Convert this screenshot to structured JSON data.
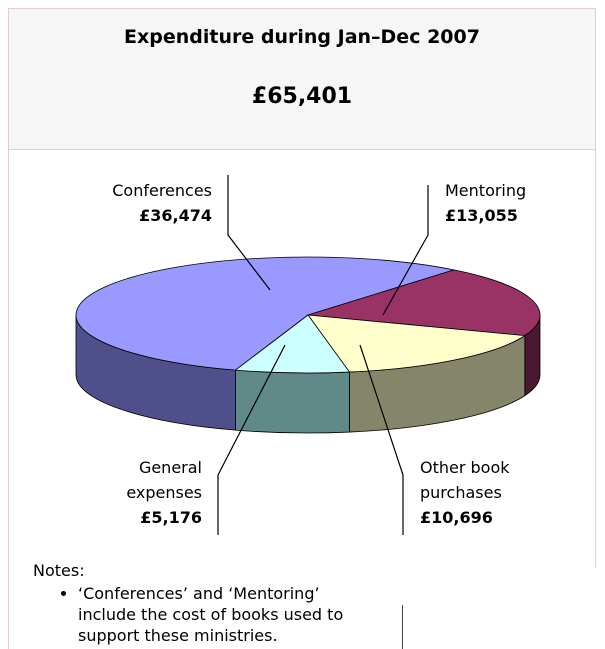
{
  "chart_data": {
    "type": "pie",
    "title": "Expenditure during Jan–Dec 2007",
    "subtitle": "£65,401",
    "categories": [
      "Conferences",
      "Mentoring",
      "Other book purchases",
      "General expenses"
    ],
    "values": [
      36474,
      13055,
      10696,
      5176
    ],
    "value_labels": [
      "£36,474",
      "£13,055",
      "£10,696",
      "£5,176"
    ],
    "colors": [
      "#9999ff",
      "#993366",
      "#ffffcc",
      "#ccffff"
    ],
    "side_colors": [
      "#4f4f8c",
      "#4a1830",
      "#85856a",
      "#608a88"
    ]
  },
  "notes": {
    "heading": "Notes:",
    "items": [
      "‘Conferences’ and ‘Mentoring’ include the cost of books used to support these ministries."
    ]
  }
}
